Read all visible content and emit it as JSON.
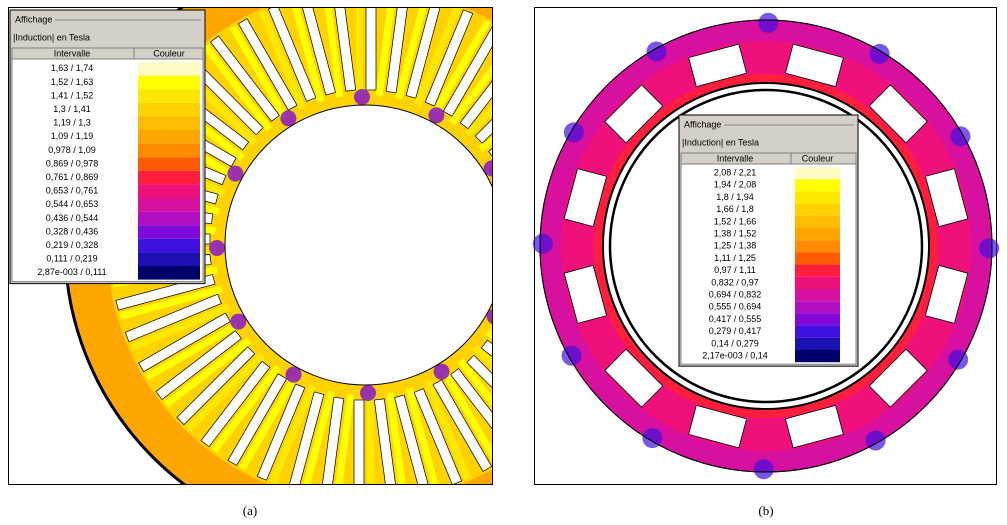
{
  "panels": [
    {
      "caption": "(a)",
      "legend": {
        "title": "Affichage",
        "subtitle": "|Induction| en Tesla",
        "col1": "Intervalle",
        "col2": "Couleur",
        "rows": [
          {
            "interval": "1,63 / 1,74",
            "color": "#fffbc4"
          },
          {
            "interval": "1,52 / 1,63",
            "color": "#ffff00"
          },
          {
            "interval": "1,41 / 1,52",
            "color": "#ffe800"
          },
          {
            "interval": "1,3 / 1,41",
            "color": "#ffd200"
          },
          {
            "interval": "1,19 / 1,3",
            "color": "#ffbc00"
          },
          {
            "interval": "1,09 / 1,19",
            "color": "#ffa600"
          },
          {
            "interval": "0,978 / 1,09",
            "color": "#ff8c00"
          },
          {
            "interval": "0,869 / 0,978",
            "color": "#ff5a00"
          },
          {
            "interval": "0,761 / 0,869",
            "color": "#ff1e3c"
          },
          {
            "interval": "0,653 / 0,761",
            "color": "#f0107a"
          },
          {
            "interval": "0,544 / 0,653",
            "color": "#d810a0"
          },
          {
            "interval": "0,436 / 0,544",
            "color": "#b010c0"
          },
          {
            "interval": "0,328 / 0,436",
            "color": "#8008d8"
          },
          {
            "interval": "0,219 / 0,328",
            "color": "#4010e0"
          },
          {
            "interval": "0,111 / 0,219",
            "color": "#1c10b0"
          },
          {
            "interval": "2,87e-003 / 0,111",
            "color": "#00006a"
          }
        ]
      }
    },
    {
      "caption": "(b)",
      "legend": {
        "title": "Affichage",
        "subtitle": "|Induction| en Tesla",
        "col1": "Intervalle",
        "col2": "Couleur",
        "rows": [
          {
            "interval": "2,08 / 2,21",
            "color": "#fffbc4"
          },
          {
            "interval": "1,94 / 2,08",
            "color": "#ffff00"
          },
          {
            "interval": "1,8 / 1,94",
            "color": "#ffe800"
          },
          {
            "interval": "1,66 / 1,8",
            "color": "#ffd200"
          },
          {
            "interval": "1,52 / 1,66",
            "color": "#ffbc00"
          },
          {
            "interval": "1,38 / 1,52",
            "color": "#ffa600"
          },
          {
            "interval": "1,25 / 1,38",
            "color": "#ff8c00"
          },
          {
            "interval": "1,11 / 1,25",
            "color": "#ff5a00"
          },
          {
            "interval": "0,97 / 1,11",
            "color": "#ff1e3c"
          },
          {
            "interval": "0,832 / 0,97",
            "color": "#f0107a"
          },
          {
            "interval": "0,694 / 0,832",
            "color": "#d810a0"
          },
          {
            "interval": "0,555 / 0,694",
            "color": "#b010c0"
          },
          {
            "interval": "0,417 / 0,555",
            "color": "#8008d8"
          },
          {
            "interval": "0,279 / 0,417",
            "color": "#4010e0"
          },
          {
            "interval": "0,14 / 0,279",
            "color": "#1c10b0"
          },
          {
            "interval": "2,17e-003 / 0,14",
            "color": "#00006a"
          }
        ]
      }
    }
  ]
}
